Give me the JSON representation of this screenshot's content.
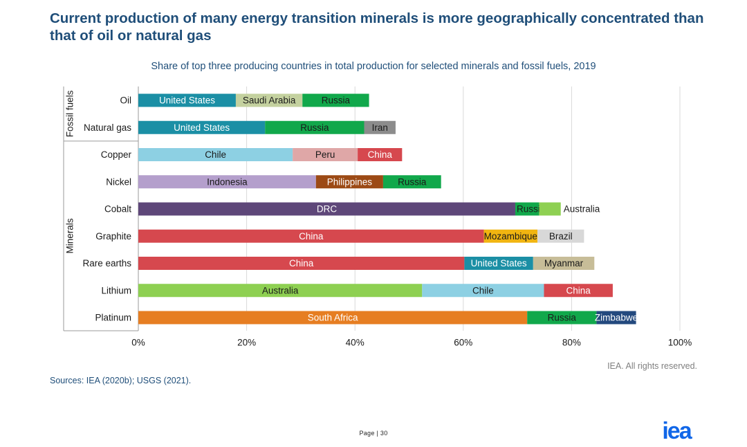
{
  "header": {
    "title": "Current production of many energy transition minerals is more geographically concentrated than that of oil or natural gas"
  },
  "chart_data": {
    "type": "bar",
    "orientation": "horizontal",
    "stacked": true,
    "title": "Share of top three producing countries in total production for selected minerals and fossil fuels, 2019",
    "xlabel": "",
    "ylabel": "",
    "xlim": [
      0,
      100
    ],
    "x_ticks": [
      "0%",
      "20%",
      "40%",
      "60%",
      "80%",
      "100%"
    ],
    "grid": true,
    "groups": [
      {
        "label": "Fossil fuels",
        "categories": [
          "Oil",
          "Natural gas"
        ]
      },
      {
        "label": "Minerals",
        "categories": [
          "Copper",
          "Nickel",
          "Cobalt",
          "Graphite",
          "Rare earths",
          "Lithium",
          "Platinum"
        ]
      }
    ],
    "categories": [
      "Oil",
      "Natural gas",
      "Copper",
      "Nickel",
      "Cobalt",
      "Graphite",
      "Rare earths",
      "Lithium",
      "Platinum"
    ],
    "bars": [
      {
        "category": "Oil",
        "segments": [
          {
            "country": "United States",
            "value": 18,
            "color": "#1b8fa5"
          },
          {
            "country": "Saudi Arabia",
            "value": 12.3,
            "color": "#c4d19f"
          },
          {
            "country": "Russia",
            "value": 12.3,
            "color": "#11a84b"
          }
        ]
      },
      {
        "category": "Natural gas",
        "segments": [
          {
            "country": "United States",
            "value": 23.4,
            "color": "#1b8fa5"
          },
          {
            "country": "Russia",
            "value": 18.3,
            "color": "#11a84b"
          },
          {
            "country": "Iran",
            "value": 5.8,
            "color": "#8c8c8c"
          }
        ]
      },
      {
        "category": "Copper",
        "segments": [
          {
            "country": "Chile",
            "value": 28.5,
            "color": "#8dd0e3"
          },
          {
            "country": "Peru",
            "value": 12,
            "color": "#dfa7a7"
          },
          {
            "country": "China",
            "value": 8.2,
            "color": "#d6484e"
          }
        ]
      },
      {
        "category": "Nickel",
        "segments": [
          {
            "country": "Indonesia",
            "value": 32.8,
            "color": "#b49fcc"
          },
          {
            "country": "Philippines",
            "value": 12.4,
            "color": "#9c4a15"
          },
          {
            "country": "Russia",
            "value": 10.7,
            "color": "#11a84b"
          }
        ]
      },
      {
        "category": "Cobalt",
        "segments": [
          {
            "country": "DRC",
            "value": 69.6,
            "color": "#5e4779"
          },
          {
            "country": "Russia",
            "value": 4.4,
            "color": "#11a84b"
          },
          {
            "country": "Australia",
            "value": 4,
            "color": "#8ed052"
          }
        ]
      },
      {
        "category": "Graphite",
        "segments": [
          {
            "country": "China",
            "value": 63.8,
            "color": "#d6484e"
          },
          {
            "country": "Mozambique",
            "value": 9.9,
            "color": "#f1b510"
          },
          {
            "country": "Brazil",
            "value": 8.6,
            "color": "#d8d8d8"
          }
        ]
      },
      {
        "category": "Rare earths",
        "segments": [
          {
            "country": "China",
            "value": 60.2,
            "color": "#d6484e"
          },
          {
            "country": "United States",
            "value": 12.7,
            "color": "#1b8fa5"
          },
          {
            "country": "Myanmar",
            "value": 11.3,
            "color": "#c7bd98"
          }
        ]
      },
      {
        "category": "Lithium",
        "segments": [
          {
            "country": "Australia",
            "value": 52.4,
            "color": "#8ed052"
          },
          {
            "country": "Chile",
            "value": 22.5,
            "color": "#8dd0e3"
          },
          {
            "country": "China",
            "value": 12.7,
            "color": "#d6484e"
          }
        ]
      },
      {
        "category": "Platinum",
        "segments": [
          {
            "country": "South Africa",
            "value": 71.8,
            "color": "#e67e22"
          },
          {
            "country": "Russia",
            "value": 12.8,
            "color": "#11a84b"
          },
          {
            "country": "Zimbabwe",
            "value": 7.3,
            "color": "#23497e"
          }
        ]
      }
    ]
  },
  "footer": {
    "credit": "IEA. All rights reserved.",
    "sources": "Sources: IEA (2020b); USGS (2021).",
    "page": "Page | 30",
    "logo": "iea"
  },
  "colors": {
    "title": "#1f4e79",
    "logo": "#1167e8"
  }
}
